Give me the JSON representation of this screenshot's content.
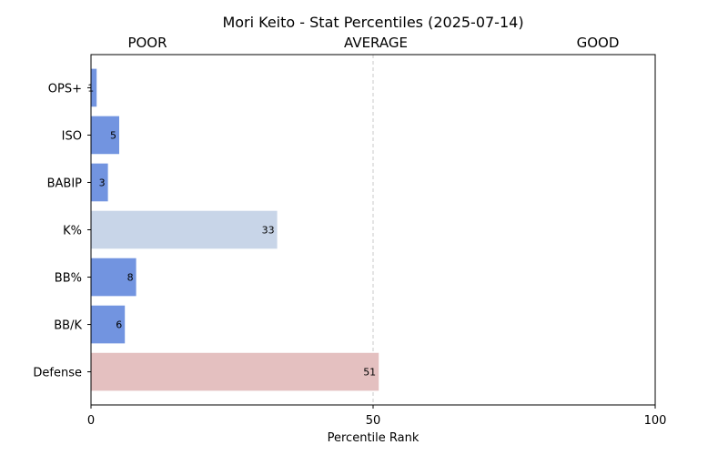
{
  "chart_data": {
    "type": "bar",
    "orientation": "horizontal",
    "title": "Mori Keito - Stat Percentiles (2025-07-14)",
    "zone_labels": [
      "POOR",
      "AVERAGE",
      "GOOD"
    ],
    "xlabel": "Percentile Rank",
    "ylabel": "",
    "xlim": [
      0,
      100
    ],
    "xticks": [
      "0",
      "50",
      "100"
    ],
    "reference_line": 50,
    "grid": false,
    "categories": [
      "OPS+",
      "ISO",
      "BABIP",
      "K%",
      "BB%",
      "BB/K",
      "Defense"
    ],
    "values": [
      1,
      5,
      3,
      33,
      8,
      6,
      51
    ],
    "bar_colors": [
      "#7294e0",
      "#7294e0",
      "#7294e0",
      "#c8d5e8",
      "#7294e0",
      "#7294e0",
      "#e4c0c0"
    ]
  }
}
